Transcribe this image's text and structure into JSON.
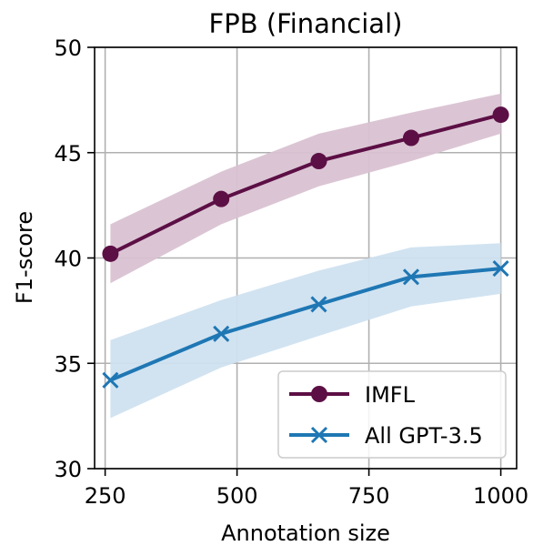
{
  "chart_data": {
    "type": "line",
    "title": "FPB (Financial)",
    "xlabel": "Annotation size",
    "ylabel": "F1-score",
    "xlim": [
      230,
      1030
    ],
    "ylim": [
      30,
      50
    ],
    "xticks": [
      250,
      500,
      750,
      1000
    ],
    "xtick_labels": [
      "250",
      "500",
      "750",
      "1000"
    ],
    "yticks": [
      30,
      35,
      40,
      45,
      50
    ],
    "ytick_labels": [
      "30",
      "35",
      "40",
      "45",
      "50"
    ],
    "grid": true,
    "legend_position": "lower-right",
    "x": [
      260,
      470,
      655,
      830,
      1000
    ],
    "series": [
      {
        "name": "IMFL",
        "color": "#5c0f45",
        "band_color": "#d9c2d2",
        "marker": "circle",
        "values": [
          40.2,
          42.8,
          44.6,
          45.7,
          46.8
        ],
        "upper": [
          41.6,
          44.1,
          45.9,
          46.9,
          47.8
        ],
        "lower": [
          38.8,
          41.6,
          43.4,
          44.6,
          45.9
        ]
      },
      {
        "name": "All GPT-3.5",
        "color": "#1f77b4",
        "band_color": "#cfe2f0",
        "marker": "x",
        "values": [
          34.2,
          36.4,
          37.8,
          39.1,
          39.5
        ],
        "upper": [
          36.1,
          38.0,
          39.4,
          40.5,
          40.7
        ],
        "lower": [
          32.4,
          34.8,
          36.3,
          37.7,
          38.3
        ]
      }
    ]
  }
}
